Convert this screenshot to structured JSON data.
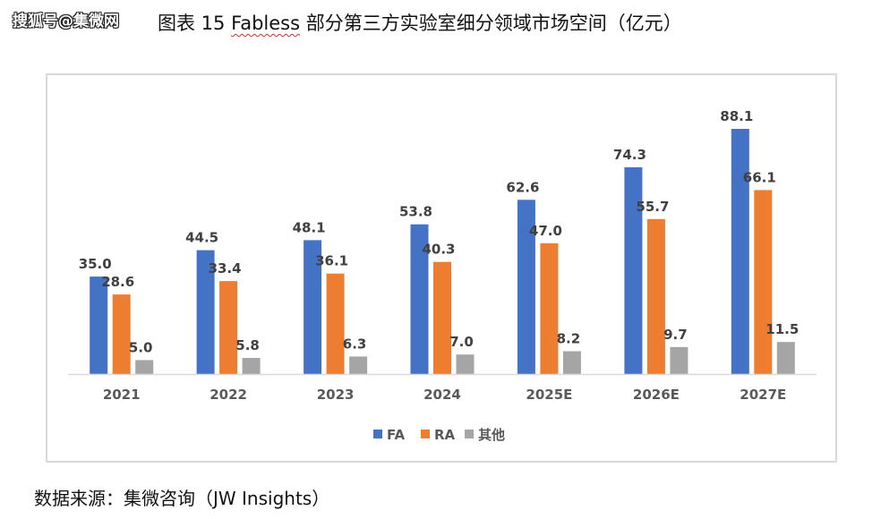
{
  "watermark": "搜狐号@集微网",
  "title_prefix": "图表  15 ",
  "title_word": "Fabless",
  "title_suffix": " 部分第三方实验室细分领域市场空间（亿元）",
  "source": "数据来源：集微咨询（JW Insights）",
  "colors": {
    "FA": "#4472C4",
    "RA": "#ED7D31",
    "其他": "#A5A5A5",
    "axis": "#d9d9d9",
    "label": "#404040"
  },
  "chart_data": {
    "type": "bar",
    "title": "Fabless 部分第三方实验室细分领域市场空间（亿元）",
    "xlabel": "",
    "ylabel": "",
    "ylim": [
      0,
      100
    ],
    "grid": false,
    "legend_position": "bottom",
    "categories": [
      "2021",
      "2022",
      "2023",
      "2024",
      "2025E",
      "2026E",
      "2027E"
    ],
    "series": [
      {
        "name": "FA",
        "color": "#4472C4",
        "values": [
          35.0,
          44.5,
          48.1,
          53.8,
          62.6,
          74.3,
          88.1
        ]
      },
      {
        "name": "RA",
        "color": "#ED7D31",
        "values": [
          28.6,
          33.4,
          36.1,
          40.3,
          47.0,
          55.7,
          66.1
        ]
      },
      {
        "name": "其他",
        "color": "#A5A5A5",
        "values": [
          5.0,
          5.8,
          6.3,
          7.0,
          8.2,
          9.7,
          11.5
        ]
      }
    ]
  }
}
